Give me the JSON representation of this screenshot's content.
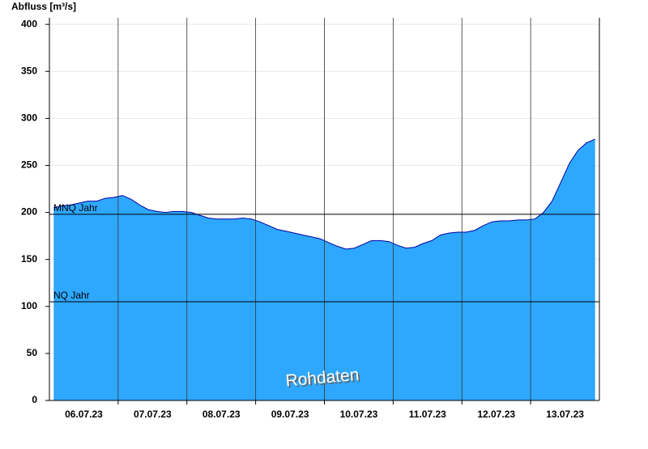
{
  "chart_data": {
    "type": "area",
    "y_label": "Abfluss [m³/s]",
    "watermark": "Rohdaten",
    "categories": [
      "06.07.23",
      "07.07.23",
      "08.07.23",
      "09.07.23",
      "10.07.23",
      "11.07.23",
      "12.07.23",
      "13.07.23"
    ],
    "values": [
      [
        205,
        207,
        208,
        210,
        212,
        212,
        215,
        216
      ],
      [
        218,
        214,
        208,
        203,
        201,
        200,
        201,
        201
      ],
      [
        200,
        197,
        194,
        193,
        193,
        193,
        194,
        193
      ],
      [
        190,
        186,
        182,
        180,
        178,
        176,
        174,
        172
      ],
      [
        168,
        164,
        161,
        162,
        166,
        170,
        170,
        169
      ],
      [
        165,
        162,
        163,
        167,
        170,
        176,
        178,
        179
      ],
      [
        179,
        181,
        186,
        190,
        191,
        191,
        192,
        192
      ],
      [
        193,
        200,
        212,
        232,
        252,
        266,
        274,
        278
      ]
    ],
    "color": "#2ea8ff",
    "line_color": "#0000a0",
    "ref_lines": [
      {
        "label": "MNQ Jahr",
        "value": 198
      },
      {
        "label": "NQ Jahr",
        "value": 105
      }
    ],
    "ylim": [
      0,
      407
    ],
    "yticks": [
      0,
      50,
      100,
      150,
      200,
      250,
      300,
      350,
      400
    ],
    "grid": true
  }
}
